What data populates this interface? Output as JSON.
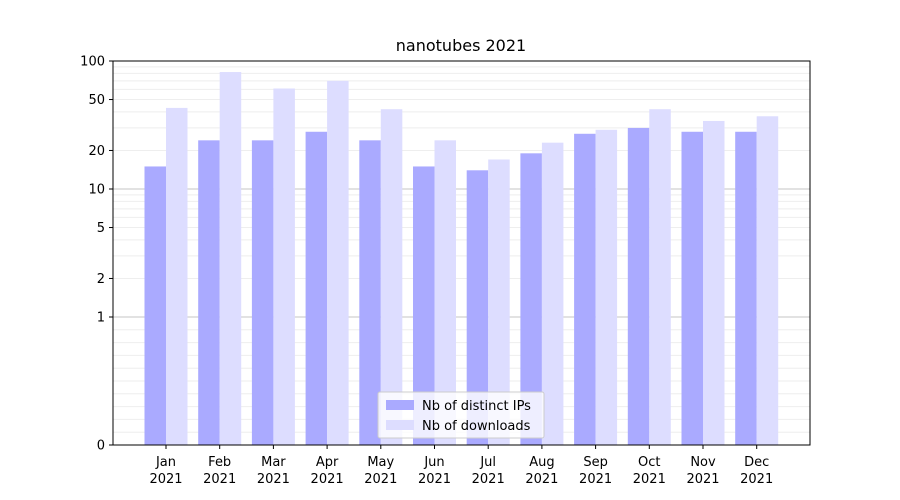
{
  "chart_data": {
    "type": "bar",
    "title": "nanotubes 2021",
    "xlabel": "",
    "ylabel": "",
    "yscale": "symlog",
    "ylim": [
      0,
      100
    ],
    "yticks": [
      0,
      1,
      2,
      5,
      10,
      20,
      50,
      100
    ],
    "ytick_labels": [
      "0",
      "1",
      "2",
      "5",
      "10",
      "20",
      "50",
      "100"
    ],
    "categories": [
      [
        "Jan",
        "2021"
      ],
      [
        "Feb",
        "2021"
      ],
      [
        "Mar",
        "2021"
      ],
      [
        "Apr",
        "2021"
      ],
      [
        "May",
        "2021"
      ],
      [
        "Jun",
        "2021"
      ],
      [
        "Jul",
        "2021"
      ],
      [
        "Aug",
        "2021"
      ],
      [
        "Sep",
        "2021"
      ],
      [
        "Oct",
        "2021"
      ],
      [
        "Nov",
        "2021"
      ],
      [
        "Dec",
        "2021"
      ]
    ],
    "series": [
      {
        "name": "Nb of distinct IPs",
        "color": "#aaaaff",
        "values": [
          15,
          24,
          24,
          28,
          24,
          15,
          14,
          19,
          27,
          30,
          28,
          28
        ]
      },
      {
        "name": "Nb of downloads",
        "color": "#ddddff",
        "values": [
          43,
          82,
          61,
          70,
          42,
          24,
          17,
          23,
          29,
          42,
          34,
          37
        ]
      }
    ],
    "grid": "horizontal",
    "legend_position": "lower center"
  }
}
